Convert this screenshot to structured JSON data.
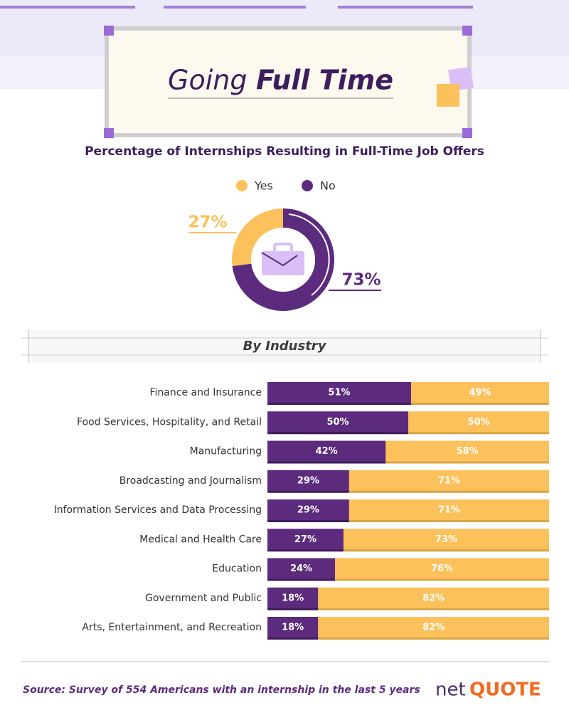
{
  "header": {
    "title": [
      "Going",
      "Full Time"
    ]
  },
  "chart_data": [
    {
      "type": "pie",
      "title": "Percentage of Internships Resulting in Full-Time Job Offers",
      "categories": [
        "Yes",
        "No"
      ],
      "values": [
        27,
        73
      ],
      "value_labels": [
        "27%",
        "73%"
      ],
      "colors": [
        "#fcc15a",
        "#5c2b7e"
      ]
    },
    {
      "type": "stacked-bar",
      "title": "By Industry",
      "categories": [
        "Finance and Insurance",
        "Food Services, Hospitality, and Retail",
        "Manufacturing",
        "Broadcasting and Journalism",
        "Information Services and Data Processing",
        "Medical and Health Care",
        "Education",
        "Government and Public",
        "Arts, Entertainment, and Recreation"
      ],
      "series": [
        {
          "color": "#5c2b7e",
          "values": [
            51,
            50,
            42,
            29,
            29,
            27,
            24,
            18,
            18
          ],
          "value_labels": [
            "51%",
            "50%",
            "42%",
            "29%",
            "29%",
            "27%",
            "24%",
            "18%",
            "18%"
          ]
        },
        {
          "color": "#fcc15a",
          "values": [
            49,
            50,
            58,
            71,
            71,
            73,
            76,
            82,
            82
          ],
          "value_labels": [
            "49%",
            "50%",
            "58%",
            "71%",
            "71%",
            "73%",
            "76%",
            "82%",
            "82%"
          ]
        }
      ],
      "xlim": [
        0,
        100
      ]
    }
  ],
  "source": "Source: Survey of 554 Americans with an internship in the last 5 years",
  "logo": [
    "net",
    "QUOTE"
  ]
}
